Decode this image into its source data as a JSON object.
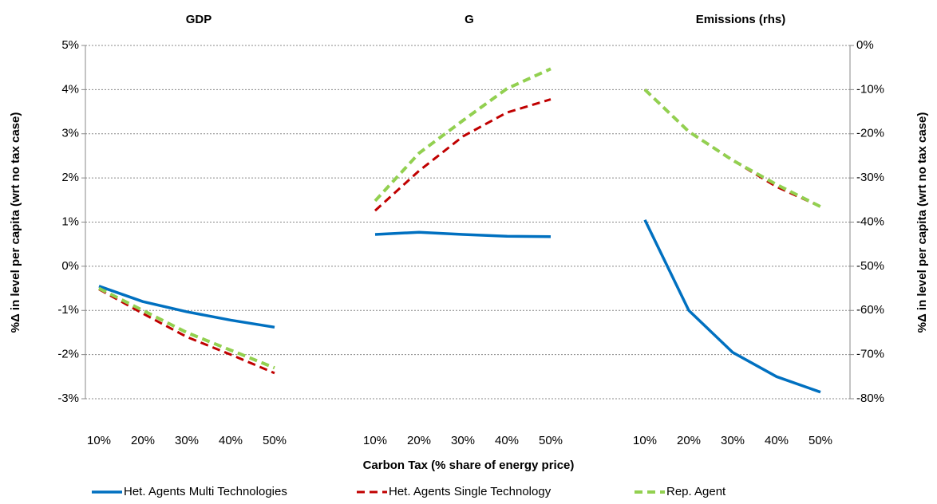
{
  "chart_data": {
    "type": "line",
    "x_label": "Carbon Tax (% share of energy price)",
    "y_label": "%Δ in level per capita  (wrt no tax case)",
    "y2_label": "%Δ in level per capita  (wrt no tax case)",
    "ylim": [
      -3,
      5
    ],
    "yticks": [
      {
        "value": -3,
        "label": "-3%"
      },
      {
        "value": -2,
        "label": "-2%"
      },
      {
        "value": -1,
        "label": "-1%"
      },
      {
        "value": 0,
        "label": "0%"
      },
      {
        "value": 1,
        "label": "1%"
      },
      {
        "value": 2,
        "label": "2%"
      },
      {
        "value": 3,
        "label": "3%"
      },
      {
        "value": 4,
        "label": "4%"
      },
      {
        "value": 5,
        "label": "5%"
      }
    ],
    "y2lim": [
      -80,
      0
    ],
    "y2ticks": [
      {
        "value": -80,
        "label": "-80%"
      },
      {
        "value": -70,
        "label": "-70%"
      },
      {
        "value": -60,
        "label": "-60%"
      },
      {
        "value": -50,
        "label": "-50%"
      },
      {
        "value": -40,
        "label": "-40%"
      },
      {
        "value": -30,
        "label": "-30%"
      },
      {
        "value": -20,
        "label": "-20%"
      },
      {
        "value": -10,
        "label": "-10%"
      },
      {
        "value": 0,
        "label": "0%"
      }
    ],
    "grid": true,
    "legend_position": "bottom",
    "legend": [
      {
        "name": "Het. Agents Multi Technologies",
        "color": "#0070c0",
        "style": "solid"
      },
      {
        "name": "Het. Agents Single Technology",
        "color": "#c00000",
        "style": "dashed"
      },
      {
        "name": "Rep. Agent",
        "color": "#92d050",
        "style": "dashed"
      }
    ],
    "panels": [
      {
        "title": "GDP",
        "axis": "y",
        "categories": [
          "10%",
          "20%",
          "30%",
          "40%",
          "50%"
        ],
        "series": [
          {
            "values": [
              -0.45,
              -0.8,
              -1.03,
              -1.22,
              -1.38
            ]
          },
          {
            "values": [
              -0.52,
              -1.07,
              -1.6,
              -2.0,
              -2.42
            ]
          },
          {
            "values": [
              -0.5,
              -1.0,
              -1.5,
              -1.9,
              -2.3
            ]
          }
        ]
      },
      {
        "title": "G",
        "axis": "y",
        "categories": [
          "10%",
          "20%",
          "30%",
          "40%",
          "50%"
        ],
        "series": [
          {
            "values": [
              0.72,
              0.77,
              0.72,
              0.68,
              0.67
            ]
          },
          {
            "values": [
              1.26,
              2.16,
              2.94,
              3.48,
              3.78
            ]
          },
          {
            "values": [
              1.48,
              2.56,
              3.3,
              4.02,
              4.47
            ]
          }
        ]
      },
      {
        "title": "Emissions (rhs)",
        "axis": "y2",
        "categories": [
          "10%",
          "20%",
          "30%",
          "40%",
          "50%"
        ],
        "series": [
          {
            "values": [
              -39.5,
              -60,
              -69.5,
              -75,
              -78.5
            ]
          },
          {
            "values": [
              -10,
              -19.5,
              -26,
              -32,
              -36.5
            ]
          },
          {
            "values": [
              -10,
              -19.5,
              -26,
              -31.5,
              -36.5
            ]
          }
        ]
      }
    ]
  }
}
